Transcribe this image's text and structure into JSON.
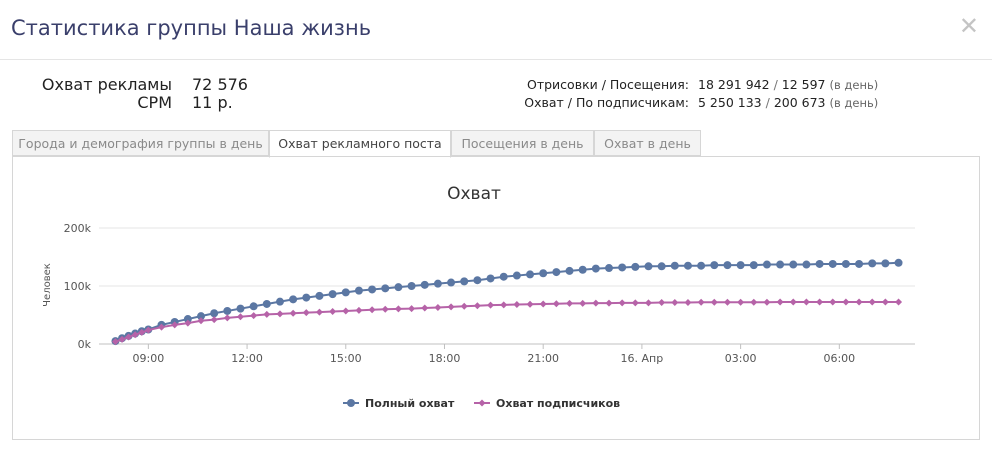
{
  "header": {
    "title": "Статистика группы Наша жизнь",
    "close_glyph": "✕"
  },
  "stats_left": [
    {
      "label": "Охват рекламы",
      "value": "72 576"
    },
    {
      "label": "CPM",
      "value": "11 р."
    }
  ],
  "stats_right": [
    {
      "label": "Отрисовки / Посещения:",
      "value_a": "18 291 942",
      "value_b": "12 597",
      "suffix": "(в день)"
    },
    {
      "label": "Охват / По подписчикам:",
      "value_a": "5 250 133",
      "value_b": "200 673",
      "suffix": "(в день)"
    }
  ],
  "tabs": [
    {
      "label": "Города и демография группы в день",
      "active": false
    },
    {
      "label": "Охват рекламного поста",
      "active": true
    },
    {
      "label": "Посещения в день",
      "active": false
    },
    {
      "label": "Охват в день",
      "active": false
    }
  ],
  "chart_data": {
    "type": "line",
    "title": "Охват",
    "ylabel": "Человек",
    "xlabel": "",
    "ylim": [
      0,
      200000
    ],
    "y_ticks": [
      "0k",
      "100k",
      "200k"
    ],
    "x_ticks": [
      "09:00",
      "12:00",
      "15:00",
      "18:00",
      "21:00",
      "16. Апр",
      "03:00",
      "06:00"
    ],
    "grid": true,
    "legend_position": "bottom",
    "x_hours": [
      8,
      8.2,
      8.4,
      8.6,
      8.8,
      9,
      9.4,
      9.8,
      10.2,
      10.6,
      11,
      11.4,
      11.8,
      12.2,
      12.6,
      13,
      13.4,
      13.8,
      14.2,
      14.6,
      15,
      15.4,
      15.8,
      16.2,
      16.6,
      17,
      17.4,
      17.8,
      18.2,
      18.6,
      19,
      19.4,
      19.8,
      20.2,
      20.6,
      21,
      21.4,
      21.8,
      22.2,
      22.6,
      23,
      23.4,
      23.8,
      24.2,
      24.6,
      25,
      25.4,
      25.8,
      26.2,
      26.6,
      27,
      27.4,
      27.8,
      28.2,
      28.6,
      29,
      29.4,
      29.8,
      30.2,
      30.6,
      31,
      31.4,
      31.8
    ],
    "series": [
      {
        "name": "Полный охват",
        "color": "#5b77a3",
        "marker": "circle",
        "values": [
          5000,
          10000,
          14000,
          18000,
          22000,
          25000,
          33000,
          38000,
          43000,
          48000,
          53000,
          57000,
          61000,
          65000,
          69000,
          73000,
          77000,
          80000,
          83000,
          86000,
          89000,
          92000,
          94000,
          96000,
          98000,
          100000,
          102000,
          104000,
          106000,
          108000,
          110000,
          113000,
          116000,
          118000,
          120000,
          122000,
          124000,
          126000,
          128000,
          130000,
          131000,
          132000,
          133000,
          134000,
          134000,
          135000,
          135000,
          135000,
          136000,
          136000,
          136000,
          136000,
          137000,
          137000,
          137000,
          137000,
          138000,
          138000,
          138000,
          138000,
          139000,
          139000,
          140000
        ]
      },
      {
        "name": "Охват подписчиков",
        "color": "#b663a8",
        "marker": "diamond",
        "values": [
          4000,
          8000,
          12000,
          16000,
          20000,
          24000,
          29000,
          33000,
          36000,
          40000,
          42000,
          45000,
          47000,
          49000,
          51000,
          52000,
          53000,
          54000,
          55000,
          56000,
          57000,
          58000,
          59000,
          60000,
          60500,
          61000,
          62000,
          63000,
          64000,
          65000,
          66000,
          67000,
          67500,
          68000,
          68500,
          69000,
          69500,
          70000,
          70000,
          70500,
          70500,
          71000,
          71000,
          71000,
          71500,
          71500,
          71500,
          72000,
          72000,
          72000,
          72000,
          72000,
          72000,
          72500,
          72500,
          72500,
          72500,
          72500,
          72500,
          72500,
          72500,
          72500,
          72500
        ]
      }
    ]
  }
}
